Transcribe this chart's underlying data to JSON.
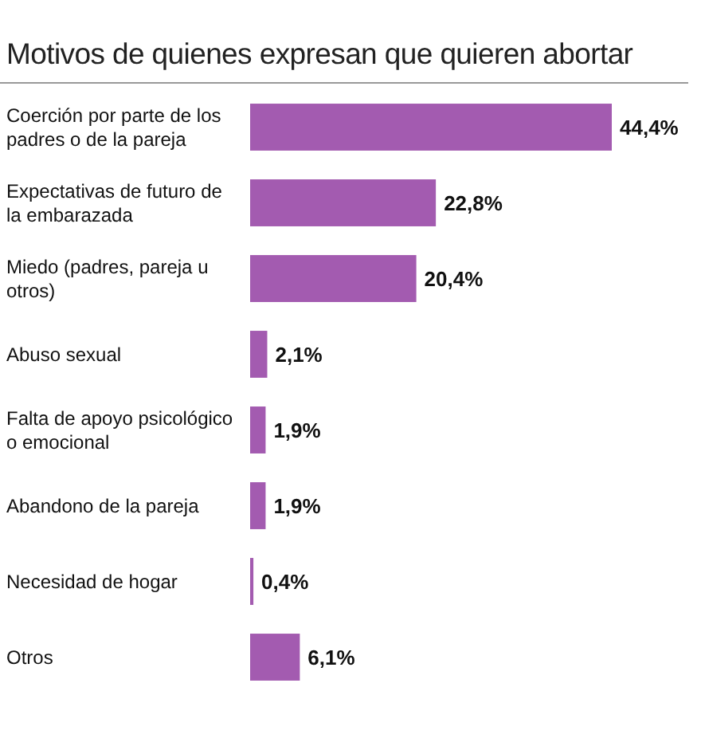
{
  "chart_data": {
    "type": "bar",
    "orientation": "horizontal",
    "title": "Motivos de quienes expresan que quieren abortar",
    "categories": [
      "Coerción por parte de los padres o de la pareja",
      "Expectativas de futuro de la embarazada",
      "Miedo (padres, pareja u otros)",
      "Abuso sexual",
      "Falta de apoyo psicológico o emocional",
      "Abandono de la pareja",
      "Necesidad de hogar",
      "Otros"
    ],
    "values": [
      44.4,
      22.8,
      20.4,
      2.1,
      1.9,
      1.9,
      0.4,
      6.1
    ],
    "value_labels": [
      "44,4%",
      "22,8%",
      "20,4%",
      "2,1%",
      "1,9%",
      "1,9%",
      "0,4%",
      "6,1%"
    ],
    "color": "#a35bb0"
  }
}
